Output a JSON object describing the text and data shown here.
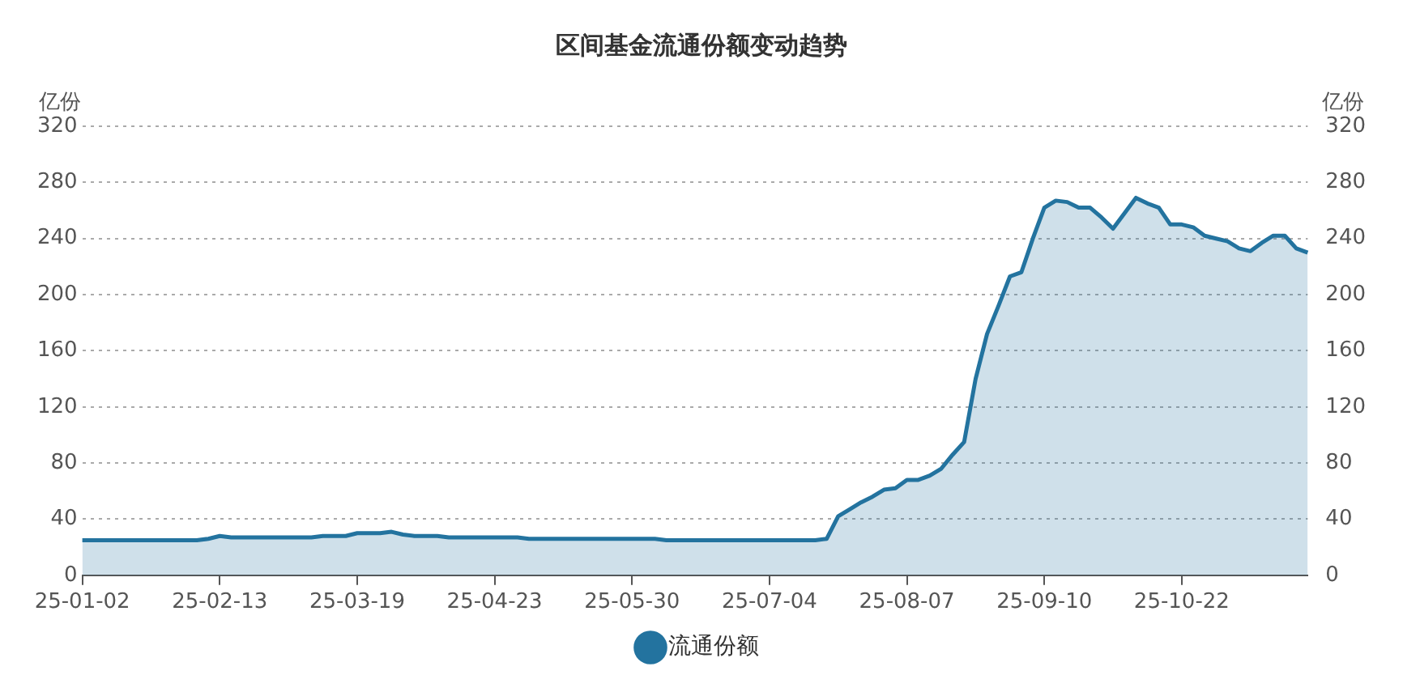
{
  "chart_data": {
    "type": "area",
    "title": "区间基金流通份额变动趋势",
    "ylabel": "亿份",
    "y2label": "亿份",
    "categories": [
      "25-01-02",
      null,
      null,
      null,
      null,
      null,
      null,
      null,
      null,
      null,
      null,
      null,
      "25-02-13",
      null,
      null,
      null,
      null,
      null,
      null,
      null,
      null,
      null,
      null,
      null,
      "25-03-19",
      null,
      null,
      null,
      null,
      null,
      null,
      null,
      null,
      null,
      null,
      null,
      "25-04-23",
      null,
      null,
      null,
      null,
      null,
      null,
      null,
      null,
      null,
      null,
      null,
      "25-05-30",
      null,
      null,
      null,
      null,
      null,
      null,
      null,
      null,
      null,
      null,
      null,
      "25-07-04",
      null,
      null,
      null,
      null,
      null,
      null,
      null,
      null,
      null,
      null,
      null,
      "25-08-07",
      null,
      null,
      null,
      null,
      null,
      null,
      null,
      null,
      null,
      null,
      null,
      "25-09-10",
      null,
      null,
      null,
      null,
      null,
      null,
      null,
      null,
      null,
      null,
      null,
      "25-10-22",
      null,
      null,
      null,
      null,
      null,
      null,
      null,
      null,
      null,
      null,
      null
    ],
    "series": [
      {
        "name": "流通份额",
        "color": "#23739f",
        "values": [
          25,
          25,
          25,
          25,
          25,
          25,
          25,
          25,
          25,
          25,
          25,
          26,
          28,
          27,
          27,
          27,
          27,
          27,
          27,
          27,
          27,
          28,
          28,
          28,
          30,
          30,
          30,
          31,
          29,
          28,
          28,
          28,
          27,
          27,
          27,
          27,
          27,
          27,
          27,
          26,
          26,
          26,
          26,
          26,
          26,
          26,
          26,
          26,
          26,
          26,
          26,
          25,
          25,
          25,
          25,
          25,
          25,
          25,
          25,
          25,
          25,
          25,
          25,
          25,
          25,
          26,
          42,
          47,
          52,
          56,
          61,
          62,
          68,
          68,
          71,
          76,
          86,
          95,
          140,
          172,
          192,
          213,
          216,
          240,
          262,
          267,
          266,
          262,
          262,
          255,
          247,
          258,
          269,
          265,
          262,
          250,
          250,
          248,
          242,
          240,
          238,
          233,
          231,
          237,
          242,
          242,
          233,
          230
        ]
      }
    ],
    "ylim": [
      0,
      320
    ],
    "yticks": [
      0,
      40,
      80,
      120,
      160,
      200,
      240,
      280,
      320
    ],
    "y2lim": [
      0,
      320
    ],
    "y2ticks": [
      0,
      40,
      80,
      120,
      160,
      200,
      240,
      280,
      320
    ],
    "grid": "y",
    "legend": "bottom",
    "marker": "none",
    "line_style": "solid"
  }
}
